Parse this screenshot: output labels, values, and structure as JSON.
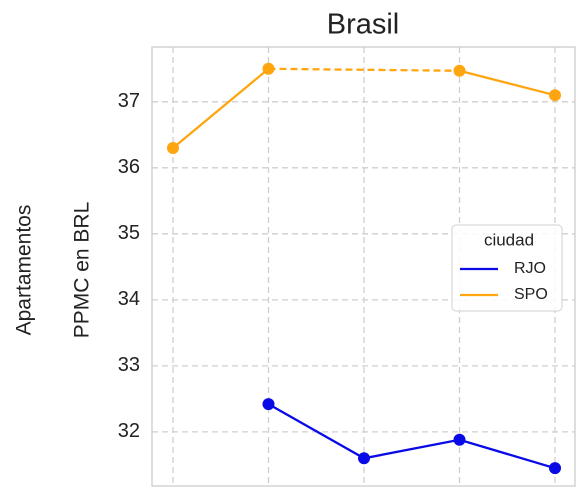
{
  "chart_data": {
    "type": "line",
    "title": "Brasil",
    "ylabel": [
      "Apartamentos",
      "PPMC en BRL"
    ],
    "categories": [
      null,
      null,
      null,
      null,
      null
    ],
    "series": [
      {
        "name": "RJO",
        "color": "#0a0ae6",
        "values": [
          null,
          32.42,
          31.6,
          31.88,
          31.45
        ]
      },
      {
        "name": "SPO",
        "color": "#ffa510",
        "values": [
          36.3,
          37.5,
          null,
          37.47,
          37.1
        ]
      }
    ],
    "ylim": [
      31.18,
      37.83
    ],
    "yticks": [
      32,
      33,
      34,
      35,
      36,
      37
    ],
    "grid": true,
    "legend": {
      "title": "ciudad",
      "position": "right"
    }
  }
}
